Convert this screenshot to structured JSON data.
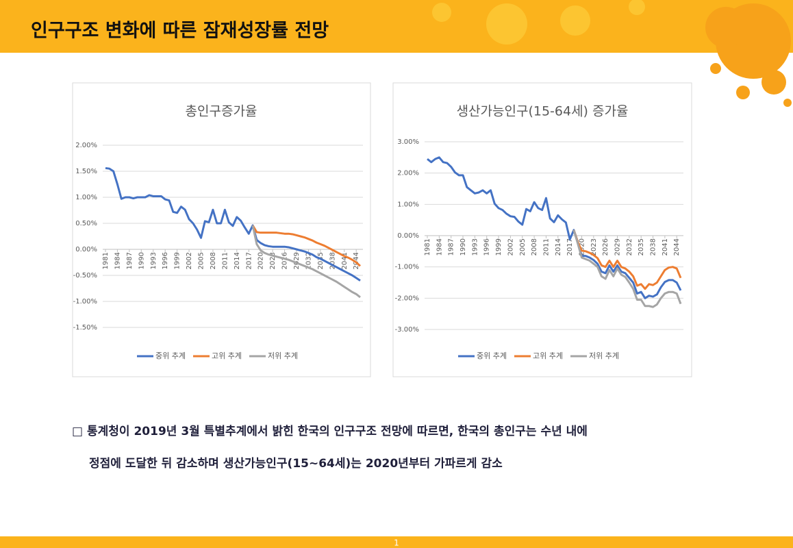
{
  "header": {
    "title": "인구구조 변화에 따른 잠재성장률 전망"
  },
  "chart_data": [
    {
      "type": "line",
      "title": "총인구증가율",
      "x": [
        1981,
        1982,
        1983,
        1984,
        1985,
        1986,
        1987,
        1988,
        1989,
        1990,
        1991,
        1992,
        1993,
        1994,
        1995,
        1996,
        1997,
        1998,
        1999,
        2000,
        2001,
        2002,
        2003,
        2004,
        2005,
        2006,
        2007,
        2008,
        2009,
        2010,
        2011,
        2012,
        2013,
        2014,
        2015,
        2016,
        2017,
        2018,
        2019,
        2020,
        2021,
        2022,
        2023,
        2024,
        2025,
        2026,
        2027,
        2028,
        2029,
        2030,
        2031,
        2032,
        2033,
        2034,
        2035,
        2036,
        2037,
        2038,
        2039,
        2040,
        2041,
        2042,
        2043,
        2044,
        2045
      ],
      "xlim": [
        1981,
        2045
      ],
      "xticks": [
        1981,
        1984,
        1987,
        1990,
        1993,
        1996,
        1999,
        2002,
        2005,
        2008,
        2011,
        2014,
        2017,
        2020,
        2023,
        2026,
        2029,
        2032,
        2035,
        2038,
        2041,
        2044
      ],
      "ylim": [
        -1.5,
        2
      ],
      "yticks": [
        {
          "value": -1.5,
          "label": "-1.50%"
        },
        {
          "value": -1,
          "label": "-1.00%"
        },
        {
          "value": -0.5,
          "label": "-0.50%"
        },
        {
          "value": 0,
          "label": "0.00%"
        },
        {
          "value": 0.5,
          "label": "0.50%"
        },
        {
          "value": 1,
          "label": "1.00%"
        },
        {
          "value": 1.5,
          "label": "1.50%"
        },
        {
          "value": 2,
          "label": "2.00%"
        }
      ],
      "grid": true,
      "legend": "bottom",
      "series": [
        {
          "name": "중위 추계",
          "color": "#4472c4",
          "values": [
            1.56,
            1.55,
            1.5,
            1.25,
            0.97,
            1.0,
            1.0,
            0.98,
            1.0,
            1.0,
            1.0,
            1.04,
            1.02,
            1.02,
            1.02,
            0.96,
            0.94,
            0.72,
            0.7,
            0.82,
            0.76,
            0.58,
            0.5,
            0.38,
            0.22,
            0.54,
            0.52,
            0.76,
            0.5,
            0.5,
            0.76,
            0.52,
            0.45,
            0.62,
            0.55,
            0.42,
            0.3,
            0.46,
            0.18,
            0.12,
            0.08,
            0.06,
            0.05,
            0.05,
            0.05,
            0.05,
            0.04,
            0.02,
            0.0,
            -0.02,
            -0.04,
            -0.07,
            -0.1,
            -0.15,
            -0.18,
            -0.22,
            -0.26,
            -0.3,
            -0.34,
            -0.38,
            -0.42,
            -0.46,
            -0.5,
            -0.55,
            -0.6
          ]
        },
        {
          "name": "고위 추계",
          "color": "#ed7d31",
          "values": [
            null,
            null,
            null,
            null,
            null,
            null,
            null,
            null,
            null,
            null,
            null,
            null,
            null,
            null,
            null,
            null,
            null,
            null,
            null,
            null,
            null,
            null,
            null,
            null,
            null,
            null,
            null,
            null,
            null,
            null,
            null,
            null,
            null,
            null,
            null,
            null,
            null,
            0.46,
            0.33,
            0.32,
            0.32,
            0.32,
            0.32,
            0.32,
            0.31,
            0.3,
            0.3,
            0.29,
            0.27,
            0.25,
            0.23,
            0.2,
            0.17,
            0.13,
            0.1,
            0.07,
            0.03,
            -0.01,
            -0.05,
            -0.09,
            -0.13,
            -0.16,
            -0.2,
            -0.25,
            -0.32
          ]
        },
        {
          "name": "저위 추계",
          "color": "#a5a5a5",
          "values": [
            null,
            null,
            null,
            null,
            null,
            null,
            null,
            null,
            null,
            null,
            null,
            null,
            null,
            null,
            null,
            null,
            null,
            null,
            null,
            null,
            null,
            null,
            null,
            null,
            null,
            null,
            null,
            null,
            null,
            null,
            null,
            null,
            null,
            null,
            null,
            null,
            null,
            0.46,
            0.1,
            -0.02,
            -0.07,
            -0.1,
            -0.12,
            -0.14,
            -0.16,
            -0.18,
            -0.2,
            -0.23,
            -0.26,
            -0.29,
            -0.32,
            -0.35,
            -0.38,
            -0.42,
            -0.46,
            -0.5,
            -0.54,
            -0.58,
            -0.62,
            -0.67,
            -0.72,
            -0.77,
            -0.82,
            -0.86,
            -0.92
          ]
        }
      ]
    },
    {
      "type": "line",
      "title": "생산가능인구(15-64세) 증가율",
      "x": [
        1981,
        1982,
        1983,
        1984,
        1985,
        1986,
        1987,
        1988,
        1989,
        1990,
        1991,
        1992,
        1993,
        1994,
        1995,
        1996,
        1997,
        1998,
        1999,
        2000,
        2001,
        2002,
        2003,
        2004,
        2005,
        2006,
        2007,
        2008,
        2009,
        2010,
        2011,
        2012,
        2013,
        2014,
        2015,
        2016,
        2017,
        2018,
        2019,
        2020,
        2021,
        2022,
        2023,
        2024,
        2025,
        2026,
        2027,
        2028,
        2029,
        2030,
        2031,
        2032,
        2033,
        2034,
        2035,
        2036,
        2037,
        2038,
        2039,
        2040,
        2041,
        2042,
        2043,
        2044,
        2045
      ],
      "xlim": [
        1981,
        2045
      ],
      "xticks": [
        1981,
        1984,
        1987,
        1990,
        1993,
        1996,
        1999,
        2002,
        2005,
        2008,
        2011,
        2014,
        2017,
        2020,
        2023,
        2026,
        2029,
        2032,
        2035,
        2038,
        2041,
        2044
      ],
      "ylim": [
        -3,
        3
      ],
      "yticks": [
        {
          "value": -3,
          "label": "-3.00%"
        },
        {
          "value": -2,
          "label": "-2.00%"
        },
        {
          "value": -1,
          "label": "-1.00%"
        },
        {
          "value": 0,
          "label": "0.00%"
        },
        {
          "value": 1,
          "label": "1.00%"
        },
        {
          "value": 2,
          "label": "2.00%"
        },
        {
          "value": 3,
          "label": "3.00%"
        }
      ],
      "grid": true,
      "legend": "bottom",
      "series": [
        {
          "name": "중위 추계",
          "color": "#4472c4",
          "values": [
            2.45,
            2.35,
            2.45,
            2.5,
            2.35,
            2.32,
            2.2,
            2.02,
            1.93,
            1.93,
            1.55,
            1.45,
            1.35,
            1.38,
            1.45,
            1.35,
            1.45,
            1.02,
            0.88,
            0.82,
            0.7,
            0.62,
            0.6,
            0.45,
            0.35,
            0.85,
            0.78,
            1.07,
            0.88,
            0.82,
            1.2,
            0.55,
            0.43,
            0.65,
            0.52,
            0.42,
            -0.12,
            0.18,
            -0.2,
            -0.65,
            -0.65,
            -0.7,
            -0.78,
            -0.9,
            -1.15,
            -1.2,
            -0.95,
            -1.15,
            -0.95,
            -1.15,
            -1.2,
            -1.35,
            -1.5,
            -1.85,
            -1.8,
            -2.0,
            -1.92,
            -1.95,
            -1.88,
            -1.65,
            -1.48,
            -1.42,
            -1.42,
            -1.5,
            -1.75
          ]
        },
        {
          "name": "고위 추계",
          "color": "#ed7d31",
          "values": [
            null,
            null,
            null,
            null,
            null,
            null,
            null,
            null,
            null,
            null,
            null,
            null,
            null,
            null,
            null,
            null,
            null,
            null,
            null,
            null,
            null,
            null,
            null,
            null,
            null,
            null,
            null,
            null,
            null,
            null,
            null,
            null,
            null,
            null,
            null,
            null,
            null,
            0.18,
            -0.2,
            -0.48,
            -0.5,
            -0.55,
            -0.62,
            -0.72,
            -0.95,
            -1.0,
            -0.8,
            -1.0,
            -0.8,
            -1.0,
            -1.05,
            -1.15,
            -1.3,
            -1.6,
            -1.55,
            -1.7,
            -1.55,
            -1.58,
            -1.5,
            -1.3,
            -1.1,
            -1.02,
            -1.0,
            -1.05,
            -1.35
          ]
        },
        {
          "name": "저위 추계",
          "color": "#a5a5a5",
          "values": [
            null,
            null,
            null,
            null,
            null,
            null,
            null,
            null,
            null,
            null,
            null,
            null,
            null,
            null,
            null,
            null,
            null,
            null,
            null,
            null,
            null,
            null,
            null,
            null,
            null,
            null,
            null,
            null,
            null,
            null,
            null,
            null,
            null,
            null,
            null,
            null,
            null,
            0.18,
            -0.25,
            -0.7,
            -0.75,
            -0.8,
            -0.9,
            -1.0,
            -1.3,
            -1.38,
            -1.1,
            -1.3,
            -1.05,
            -1.25,
            -1.32,
            -1.5,
            -1.7,
            -2.05,
            -2.05,
            -2.25,
            -2.25,
            -2.28,
            -2.2,
            -2.0,
            -1.85,
            -1.8,
            -1.8,
            -1.85,
            -2.18
          ]
        }
      ]
    }
  ],
  "body": {
    "lines": [
      "□ 통계청이 2019년 3월 특별추계에서 밝힌 한국의 인구구조 전망에 따르면, 한국의 총인구는 수년 내에",
      "정점에 도달한 뒤 감소하며 생산가능인구(15~64세)는 2020년부터 가파르게 감소"
    ]
  },
  "footer": {
    "page": "1"
  }
}
